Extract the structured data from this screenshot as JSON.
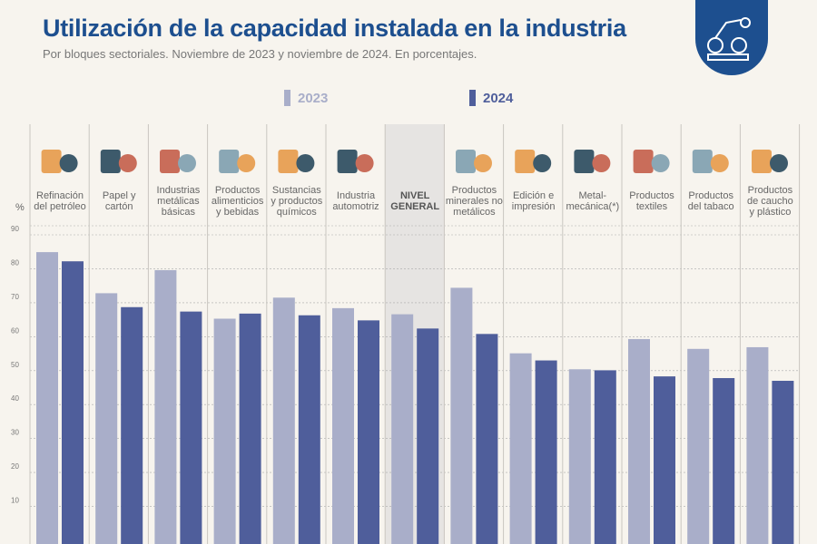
{
  "header": {
    "title": "Utilización de la capacidad instalada en la industria",
    "subtitle": "Por bloques sectoriales. Noviembre de 2023 y noviembre de 2024. En porcentajes."
  },
  "colors": {
    "s2023": "#a9aec9",
    "s2024": "#4f5e9b",
    "title": "#1d4f8f",
    "highlight": "#e6e4e2"
  },
  "chart_data": {
    "type": "bar",
    "title": "Utilización de la capacidad instalada en la industria",
    "ylabel": "%",
    "ylim": [
      0,
      90
    ],
    "yticks": [
      10,
      20,
      30,
      40,
      50,
      60,
      70,
      80,
      90
    ],
    "grid": true,
    "legend": "top",
    "categories": [
      "Refinación del petróleo",
      "Papel y cartón",
      "Industrias metálicas básicas",
      "Productos alimenticios y bebidas",
      "Sustancias y productos químicos",
      "Industria automotriz",
      "NIVEL GENERAL",
      "Productos minerales no metálicos",
      "Edición e impresión",
      "Metal-mecánica(*)",
      "Productos textiles",
      "Productos del tabaco",
      "Productos de caucho y plástico"
    ],
    "series": [
      {
        "name": "2023",
        "values": [
          84.9,
          72.8,
          79.6,
          65.3,
          71.5,
          68.4,
          66.6,
          74.4,
          55.1,
          50.4,
          59.3,
          56.4,
          56.9
        ]
      },
      {
        "name": "2024",
        "values": [
          82.2,
          68.7,
          67.4,
          66.8,
          66.3,
          64.8,
          62.4,
          60.8,
          53.0,
          50.1,
          48.3,
          47.8,
          47.0
        ]
      }
    ]
  },
  "category_lines": [
    [
      "Refinación",
      "del petróleo"
    ],
    [
      "Papel y",
      "cartón"
    ],
    [
      "Industrias",
      "metálicas",
      "básicas"
    ],
    [
      "Productos",
      "alimenticios",
      "y bebidas"
    ],
    [
      "Sustancias",
      "y productos",
      "químicos"
    ],
    [
      "Industria",
      "automotriz"
    ],
    [
      "NIVEL",
      "GENERAL"
    ],
    [
      "Productos",
      "minerales no",
      "metálicos"
    ],
    [
      "Edición e",
      "impresión"
    ],
    [
      "Metal-",
      "mecánica(*)"
    ],
    [
      "Productos",
      "textiles"
    ],
    [
      "Productos",
      "del tabaco"
    ],
    [
      "Productos",
      "de caucho",
      "y plástico"
    ]
  ],
  "icons": [
    "oil-refinery-icon",
    "paper-box-icon",
    "metal-grinder-icon",
    "food-bottle-bread-icon",
    "chemical-flask-icon",
    "car-icon",
    "",
    "minerals-cart-icon",
    "printing-rolls-icon",
    "gears-icon",
    "textile-spools-icon",
    "tobacco-pipe-icon",
    "tire-icon"
  ]
}
